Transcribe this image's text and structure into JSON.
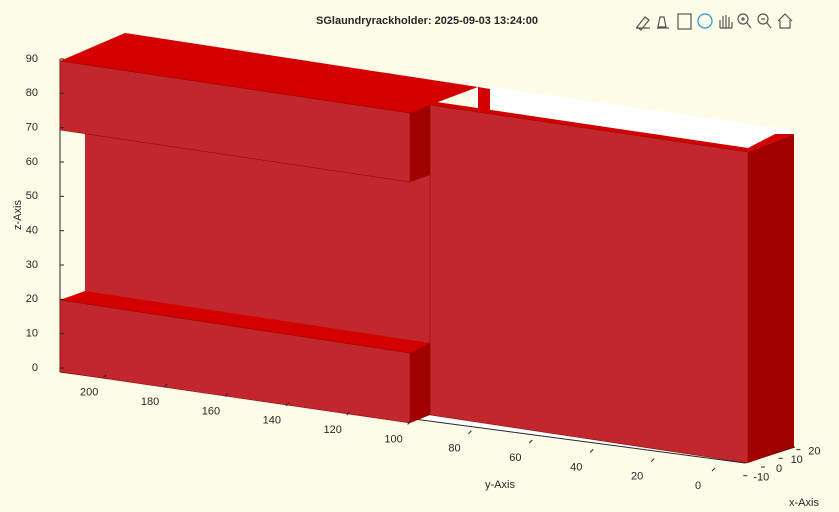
{
  "chart_data": {
    "type": "solid3d",
    "title": "SGlaundryrackholder: 2025-09-03 13:24:00",
    "xlabel": "x-Axis",
    "ylabel": "y-Axis",
    "zlabel": "z-Axis",
    "xlim": [
      -15,
      25
    ],
    "ylim": [
      0,
      225
    ],
    "zlim": [
      0,
      90
    ],
    "xticks": [
      -10,
      0,
      10,
      20
    ],
    "yticks": [
      0,
      20,
      40,
      60,
      80,
      100,
      120,
      140,
      160,
      180,
      200
    ],
    "zticks": [
      0,
      10,
      20,
      30,
      40,
      50,
      60,
      70,
      80,
      90
    ],
    "color": "#c1272d"
  }
}
